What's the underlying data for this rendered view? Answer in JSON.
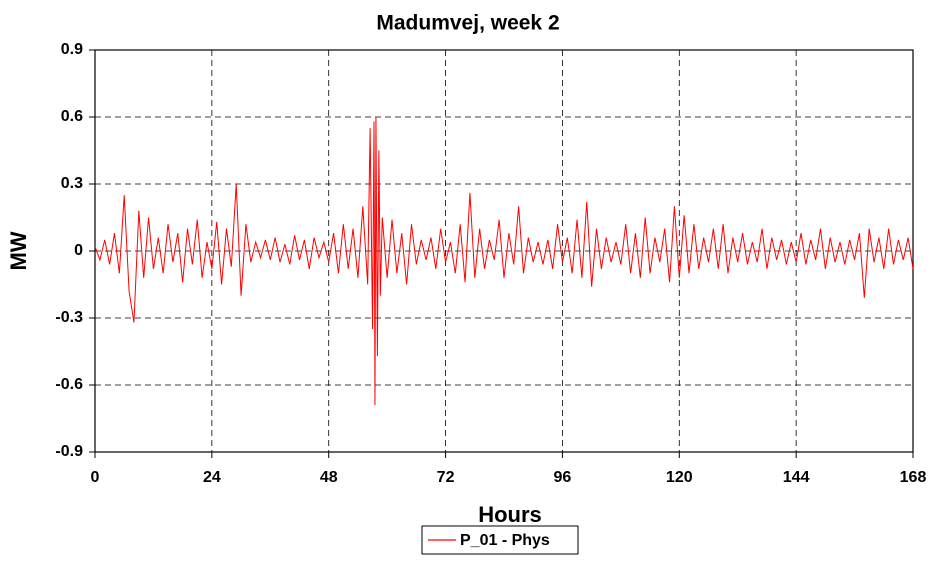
{
  "chart_data": {
    "type": "line",
    "title": "Madumvej, week 2",
    "x_label": "Hours",
    "y_label": "MW",
    "x": [
      0,
      1,
      2,
      3,
      4,
      5,
      6,
      7,
      8,
      9,
      10,
      11,
      12,
      13,
      14,
      15,
      16,
      17,
      18,
      19,
      20,
      21,
      22,
      23,
      24,
      25,
      26,
      27,
      28,
      29,
      30,
      31,
      32,
      33,
      34,
      35,
      36,
      37,
      38,
      39,
      40,
      41,
      42,
      43,
      44,
      45,
      46,
      47,
      48,
      49,
      50,
      51,
      52,
      53,
      54,
      55,
      56,
      56.5,
      57,
      57.3,
      57.5,
      57.7,
      58,
      58.3,
      58.6,
      59,
      60,
      61,
      62,
      63,
      64,
      65,
      66,
      67,
      68,
      69,
      70,
      71,
      72,
      73,
      74,
      75,
      76,
      77,
      78,
      79,
      80,
      81,
      82,
      83,
      84,
      85,
      86,
      87,
      88,
      89,
      90,
      91,
      92,
      93,
      94,
      95,
      96,
      97,
      98,
      99,
      100,
      101,
      102,
      103,
      104,
      105,
      106,
      107,
      108,
      109,
      110,
      111,
      112,
      113,
      114,
      115,
      116,
      117,
      118,
      119,
      120,
      121,
      122,
      123,
      124,
      125,
      126,
      127,
      128,
      129,
      130,
      131,
      132,
      133,
      134,
      135,
      136,
      137,
      138,
      139,
      140,
      141,
      142,
      143,
      144,
      145,
      146,
      147,
      148,
      149,
      150,
      151,
      152,
      153,
      154,
      155,
      156,
      157,
      158,
      159,
      160,
      161,
      162,
      163,
      164,
      165,
      166,
      167,
      168
    ],
    "series": [
      {
        "name": "P_01 - Phys",
        "color": "#ff0000",
        "values": [
          0.02,
          -0.04,
          0.05,
          -0.06,
          0.08,
          -0.1,
          0.25,
          -0.18,
          -0.32,
          0.18,
          -0.12,
          0.15,
          -0.08,
          0.06,
          -0.1,
          0.12,
          -0.05,
          0.08,
          -0.14,
          0.1,
          -0.06,
          0.14,
          -0.12,
          0.04,
          -0.08,
          0.13,
          -0.15,
          0.1,
          -0.07,
          0.3,
          -0.2,
          0.12,
          -0.05,
          0.04,
          -0.03,
          0.05,
          -0.04,
          0.06,
          -0.05,
          0.03,
          -0.06,
          0.07,
          -0.04,
          0.05,
          -0.08,
          0.06,
          -0.03,
          0.04,
          -0.05,
          0.08,
          -0.1,
          0.12,
          -0.08,
          0.1,
          -0.12,
          0.2,
          -0.15,
          0.55,
          -0.35,
          0.58,
          -0.69,
          0.6,
          -0.47,
          0.45,
          -0.2,
          0.15,
          -0.12,
          0.14,
          -0.1,
          0.08,
          -0.15,
          0.12,
          -0.06,
          0.05,
          -0.04,
          0.06,
          -0.08,
          0.1,
          -0.05,
          0.04,
          -0.1,
          0.12,
          -0.14,
          0.26,
          -0.12,
          0.1,
          -0.08,
          0.05,
          -0.04,
          0.14,
          -0.12,
          0.08,
          -0.06,
          0.2,
          -0.1,
          0.06,
          -0.05,
          0.04,
          -0.06,
          0.05,
          -0.08,
          0.12,
          -0.05,
          0.06,
          -0.1,
          0.14,
          -0.12,
          0.22,
          -0.16,
          0.1,
          -0.08,
          0.06,
          -0.05,
          0.04,
          -0.06,
          0.12,
          -0.1,
          0.08,
          -0.12,
          0.15,
          -0.1,
          0.06,
          -0.05,
          0.1,
          -0.14,
          0.2,
          -0.12,
          0.16,
          -0.1,
          0.12,
          -0.08,
          0.06,
          -0.05,
          0.1,
          -0.08,
          0.12,
          -0.1,
          0.06,
          -0.05,
          0.08,
          -0.06,
          0.04,
          -0.05,
          0.1,
          -0.08,
          0.06,
          -0.04,
          0.05,
          -0.06,
          0.04,
          -0.05,
          0.08,
          -0.06,
          0.05,
          -0.04,
          0.1,
          -0.08,
          0.06,
          -0.05,
          0.04,
          -0.06,
          0.05,
          -0.04,
          0.08,
          -0.21,
          0.1,
          -0.05,
          0.06,
          -0.08,
          0.1,
          -0.06,
          0.05,
          -0.04,
          0.06,
          -0.08
        ]
      }
    ],
    "xlim": [
      0,
      168
    ],
    "xticks": [
      0,
      24,
      48,
      72,
      96,
      120,
      144,
      168
    ],
    "ylim": [
      -0.9,
      0.9
    ],
    "yticks": [
      -0.9,
      -0.6,
      -0.3,
      0,
      0.3,
      0.6,
      0.9
    ],
    "grid": true,
    "legend": "bottom"
  }
}
